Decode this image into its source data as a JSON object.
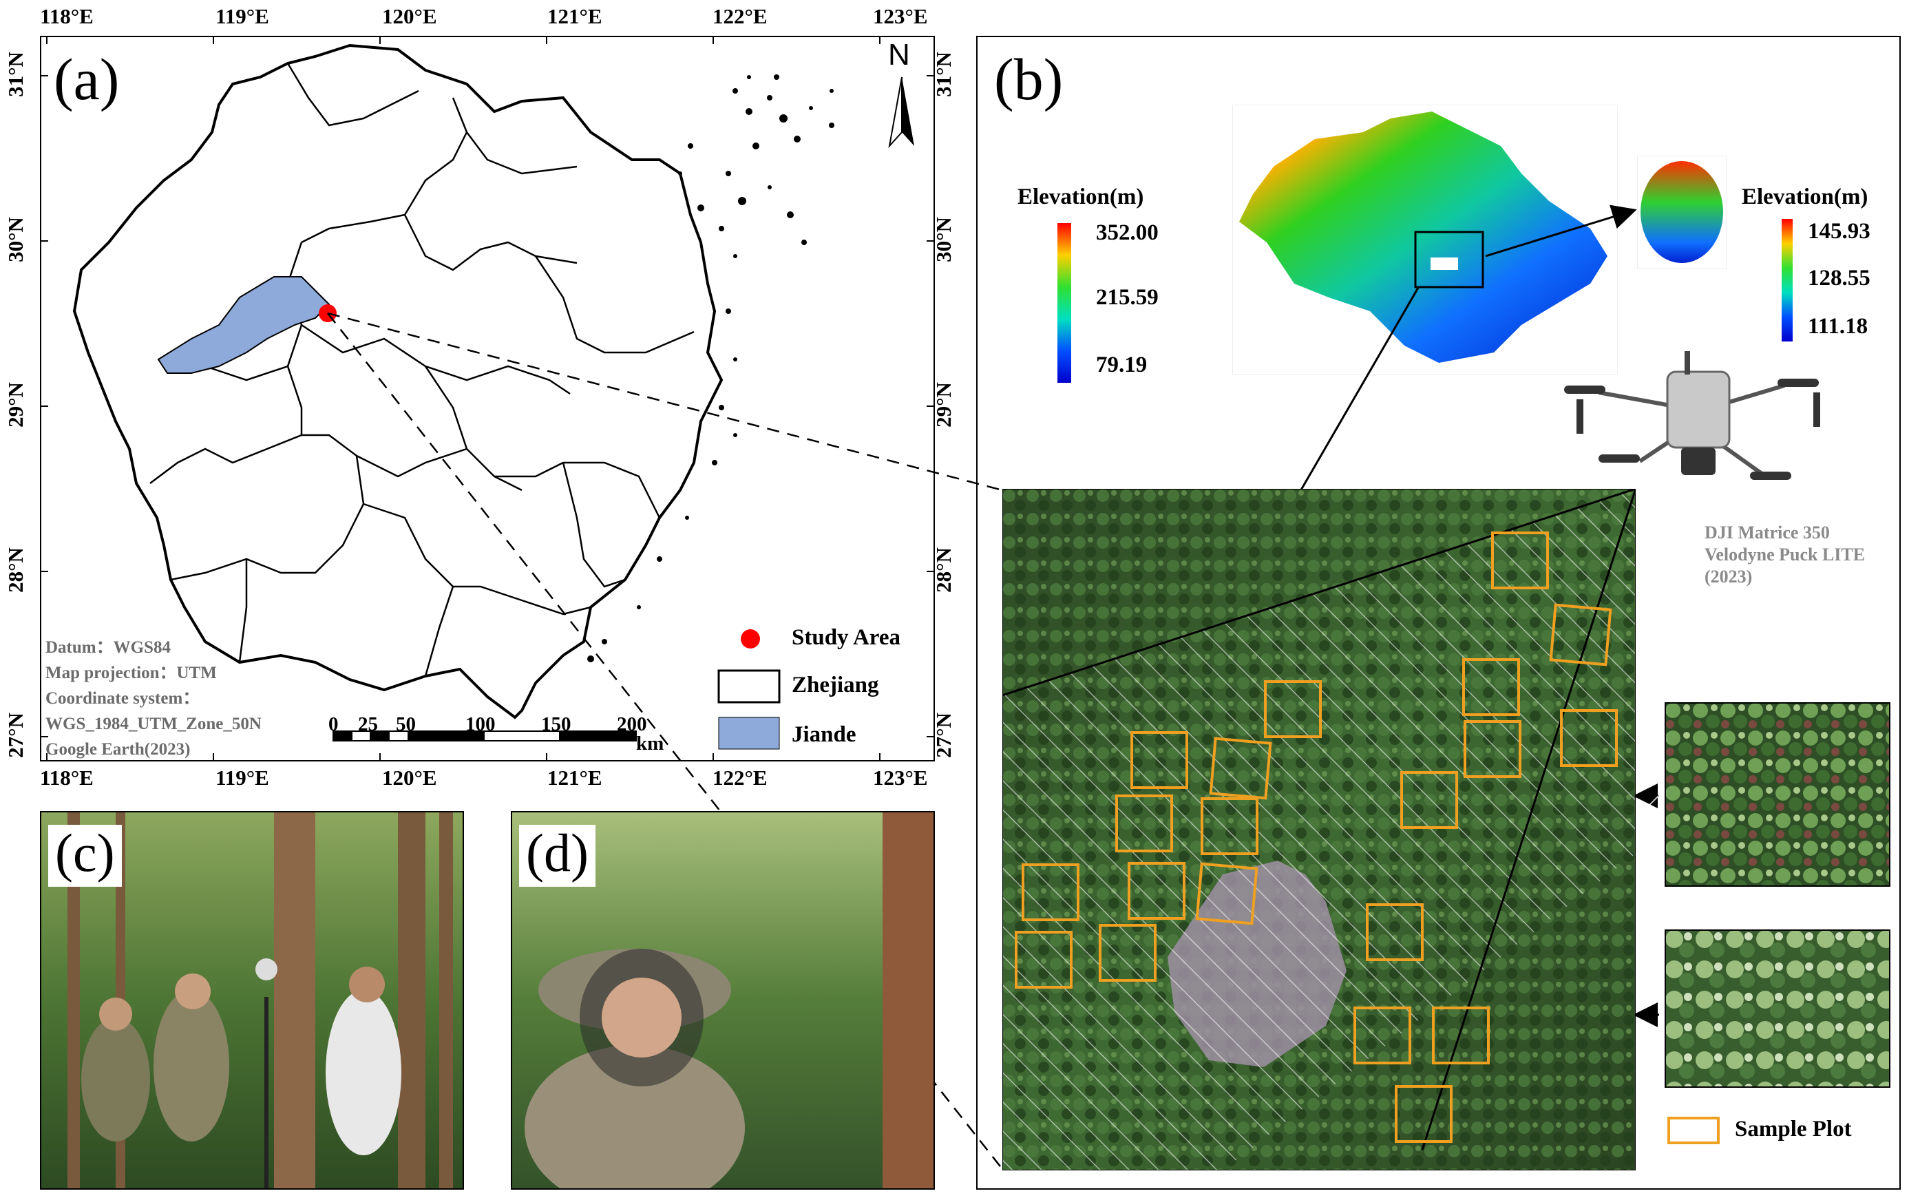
{
  "panel_a": {
    "label": "(a)",
    "lon_ticks": [
      "118°E",
      "119°E",
      "120°E",
      "121°E",
      "122°E",
      "123°E"
    ],
    "lat_ticks": [
      "31°N",
      "30°N",
      "29°N",
      "28°N",
      "27°N"
    ],
    "north": "N",
    "info_lines": [
      "Datum：WGS84",
      "Map projection：UTM",
      "Coordinate system：",
      "WGS_1984_UTM_Zone_50N",
      "Google Earth(2023)"
    ],
    "scale": {
      "labels": [
        "0",
        "25",
        "50",
        "100",
        "150",
        "200"
      ],
      "unit": "km"
    },
    "legend": {
      "study_area": "Study Area",
      "zhejiang": "Zhejiang",
      "jiande": "Jiande"
    },
    "colors": {
      "jiande": "#8eaadb",
      "study_area": "#ff0000"
    }
  },
  "panel_b": {
    "label": "(b)",
    "elevation_main": {
      "title": "Elevation(m)",
      "max": "352.00",
      "mid": "215.59",
      "min": "79.19"
    },
    "elevation_plot": {
      "title": "Elevation(m)",
      "max": "145.93",
      "mid": "128.55",
      "min": "111.18"
    },
    "drone": {
      "lines": [
        "DJI Matrice 350",
        "Velodyne Puck LITE",
        "(2023)"
      ]
    },
    "legend": {
      "sample_plot": "Sample Plot"
    },
    "colors": {
      "sample_plot": "#f0a020"
    }
  },
  "panel_c": {
    "label": "(c)"
  },
  "panel_d": {
    "label": "(d)"
  }
}
